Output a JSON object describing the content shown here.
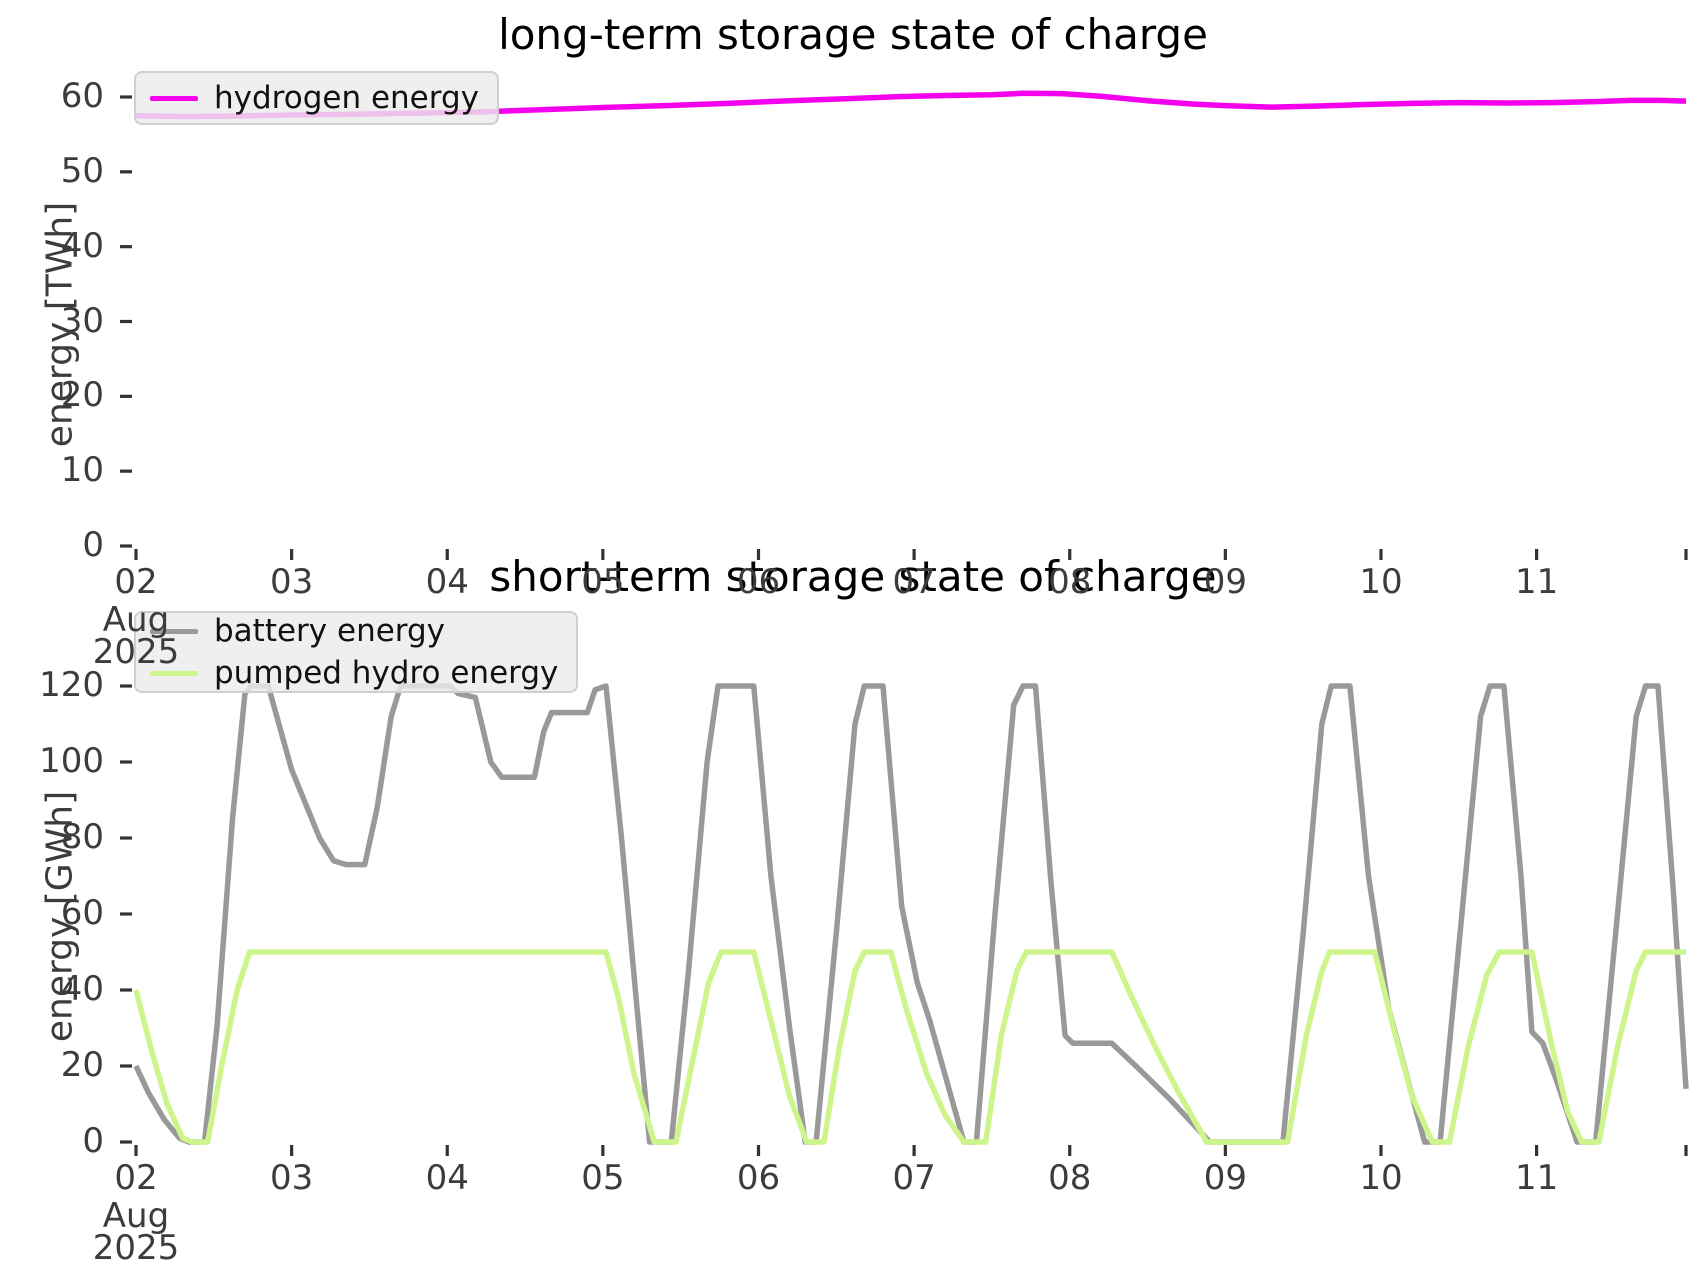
{
  "chart_data": [
    {
      "type": "line",
      "title": "long-term storage state of charge",
      "ylabel": "energy [TWh]",
      "yticks": [
        0,
        10,
        20,
        30,
        40,
        50,
        60
      ],
      "ylim": [
        0,
        60
      ],
      "xlim_days": [
        2.0,
        11.96
      ],
      "x_unit": "day of August 2025",
      "xticks": [
        {
          "day": 2,
          "label": "02",
          "sub": [
            "Aug",
            "2025"
          ]
        },
        {
          "day": 3,
          "label": "03"
        },
        {
          "day": 4,
          "label": "04"
        },
        {
          "day": 5,
          "label": "05"
        },
        {
          "day": 6,
          "label": "06"
        },
        {
          "day": 7,
          "label": "07"
        },
        {
          "day": 8,
          "label": "08"
        },
        {
          "day": 9,
          "label": "09"
        },
        {
          "day": 10,
          "label": "10"
        },
        {
          "day": 11,
          "label": "11"
        }
      ],
      "grid": false,
      "legend_position": "upper-left",
      "series": [
        {
          "name": "hydrogen energy",
          "color": "#f500ee",
          "points": [
            [
              2.0,
              57.5
            ],
            [
              2.3,
              57.4
            ],
            [
              2.6,
              57.45
            ],
            [
              3.0,
              57.6
            ],
            [
              3.4,
              57.7
            ],
            [
              3.8,
              57.85
            ],
            [
              4.2,
              58.0
            ],
            [
              4.6,
              58.3
            ],
            [
              5.0,
              58.6
            ],
            [
              5.4,
              58.85
            ],
            [
              5.8,
              59.15
            ],
            [
              6.2,
              59.5
            ],
            [
              6.6,
              59.8
            ],
            [
              6.9,
              60.05
            ],
            [
              7.2,
              60.2
            ],
            [
              7.5,
              60.3
            ],
            [
              7.7,
              60.5
            ],
            [
              7.95,
              60.45
            ],
            [
              8.2,
              60.1
            ],
            [
              8.5,
              59.5
            ],
            [
              8.8,
              59.05
            ],
            [
              9.0,
              58.85
            ],
            [
              9.3,
              58.65
            ],
            [
              9.6,
              58.8
            ],
            [
              9.9,
              59.0
            ],
            [
              10.2,
              59.15
            ],
            [
              10.5,
              59.25
            ],
            [
              10.8,
              59.2
            ],
            [
              11.1,
              59.25
            ],
            [
              11.4,
              59.4
            ],
            [
              11.6,
              59.55
            ],
            [
              11.8,
              59.55
            ],
            [
              11.96,
              59.45
            ]
          ]
        }
      ]
    },
    {
      "type": "line",
      "title": "short-term storage state of charge",
      "ylabel": "energy [GWh]",
      "yticks": [
        0,
        20,
        40,
        60,
        80,
        100,
        120
      ],
      "ylim": [
        0,
        120
      ],
      "xlim_days": [
        2.0,
        11.96
      ],
      "x_unit": "day of August 2025",
      "xticks": [
        {
          "day": 2,
          "label": "02",
          "sub": [
            "Aug",
            "2025"
          ]
        },
        {
          "day": 3,
          "label": "03"
        },
        {
          "day": 4,
          "label": "04"
        },
        {
          "day": 5,
          "label": "05"
        },
        {
          "day": 6,
          "label": "06"
        },
        {
          "day": 7,
          "label": "07"
        },
        {
          "day": 8,
          "label": "08"
        },
        {
          "day": 9,
          "label": "09"
        },
        {
          "day": 10,
          "label": "10"
        },
        {
          "day": 11,
          "label": "11"
        }
      ],
      "grid": false,
      "legend_position": "upper-left",
      "series": [
        {
          "name": "battery energy",
          "color": "#999999",
          "points": [
            [
              2.0,
              20
            ],
            [
              2.08,
              13
            ],
            [
              2.18,
              6
            ],
            [
              2.28,
              1
            ],
            [
              2.34,
              0
            ],
            [
              2.44,
              0
            ],
            [
              2.52,
              30
            ],
            [
              2.62,
              85
            ],
            [
              2.7,
              118
            ],
            [
              2.74,
              120
            ],
            [
              2.85,
              120
            ],
            [
              3.0,
              98
            ],
            [
              3.18,
              80
            ],
            [
              3.27,
              74
            ],
            [
              3.35,
              73
            ],
            [
              3.47,
              73
            ],
            [
              3.55,
              88
            ],
            [
              3.64,
              112
            ],
            [
              3.7,
              120
            ],
            [
              4.02,
              120
            ],
            [
              4.07,
              118
            ],
            [
              4.18,
              117
            ],
            [
              4.28,
              100
            ],
            [
              4.35,
              96
            ],
            [
              4.56,
              96
            ],
            [
              4.62,
              108
            ],
            [
              4.67,
              113
            ],
            [
              4.9,
              113
            ],
            [
              4.95,
              119
            ],
            [
              5.02,
              120
            ],
            [
              5.12,
              80
            ],
            [
              5.22,
              35
            ],
            [
              5.3,
              0
            ],
            [
              5.44,
              0
            ],
            [
              5.55,
              45
            ],
            [
              5.67,
              100
            ],
            [
              5.74,
              120
            ],
            [
              5.97,
              120
            ],
            [
              6.08,
              70
            ],
            [
              6.2,
              30
            ],
            [
              6.3,
              0
            ],
            [
              6.37,
              0
            ],
            [
              6.5,
              55
            ],
            [
              6.62,
              110
            ],
            [
              6.68,
              120
            ],
            [
              6.8,
              120
            ],
            [
              6.92,
              62
            ],
            [
              7.02,
              42
            ],
            [
              7.1,
              32
            ],
            [
              7.32,
              0
            ],
            [
              7.4,
              0
            ],
            [
              7.52,
              60
            ],
            [
              7.64,
              115
            ],
            [
              7.7,
              120
            ],
            [
              7.78,
              120
            ],
            [
              7.88,
              68
            ],
            [
              7.97,
              28
            ],
            [
              8.02,
              26
            ],
            [
              8.27,
              26
            ],
            [
              8.45,
              19
            ],
            [
              8.65,
              11
            ],
            [
              8.9,
              0
            ],
            [
              9.37,
              0
            ],
            [
              9.5,
              55
            ],
            [
              9.62,
              110
            ],
            [
              9.68,
              120
            ],
            [
              9.8,
              120
            ],
            [
              9.92,
              70
            ],
            [
              10.05,
              35
            ],
            [
              10.28,
              0
            ],
            [
              10.38,
              0
            ],
            [
              10.52,
              60
            ],
            [
              10.64,
              112
            ],
            [
              10.7,
              120
            ],
            [
              10.79,
              120
            ],
            [
              10.9,
              70
            ],
            [
              10.97,
              29
            ],
            [
              11.04,
              26
            ],
            [
              11.13,
              16
            ],
            [
              11.26,
              0
            ],
            [
              11.38,
              0
            ],
            [
              11.52,
              60
            ],
            [
              11.64,
              112
            ],
            [
              11.7,
              120
            ],
            [
              11.78,
              120
            ],
            [
              11.88,
              65
            ],
            [
              11.96,
              14
            ]
          ]
        },
        {
          "name": "pumped hydro energy",
          "color": "#cdf58c",
          "points": [
            [
              2.0,
              40
            ],
            [
              2.1,
              24
            ],
            [
              2.2,
              10
            ],
            [
              2.3,
              1
            ],
            [
              2.36,
              0
            ],
            [
              2.46,
              0
            ],
            [
              2.55,
              20
            ],
            [
              2.65,
              40
            ],
            [
              2.73,
              50
            ],
            [
              5.02,
              50
            ],
            [
              5.1,
              38
            ],
            [
              5.2,
              18
            ],
            [
              5.33,
              0
            ],
            [
              5.47,
              0
            ],
            [
              5.58,
              22
            ],
            [
              5.68,
              42
            ],
            [
              5.76,
              50
            ],
            [
              5.97,
              50
            ],
            [
              6.08,
              32
            ],
            [
              6.2,
              12
            ],
            [
              6.31,
              0
            ],
            [
              6.42,
              0
            ],
            [
              6.52,
              25
            ],
            [
              6.62,
              45
            ],
            [
              6.68,
              50
            ],
            [
              6.85,
              50
            ],
            [
              6.95,
              35
            ],
            [
              7.08,
              18
            ],
            [
              7.2,
              7
            ],
            [
              7.32,
              0
            ],
            [
              7.46,
              0
            ],
            [
              7.56,
              28
            ],
            [
              7.66,
              45
            ],
            [
              7.72,
              50
            ],
            [
              8.27,
              50
            ],
            [
              8.4,
              38
            ],
            [
              8.55,
              25
            ],
            [
              8.7,
              13
            ],
            [
              8.88,
              0
            ],
            [
              9.4,
              0
            ],
            [
              9.52,
              28
            ],
            [
              9.62,
              45
            ],
            [
              9.67,
              50
            ],
            [
              9.96,
              50
            ],
            [
              10.08,
              30
            ],
            [
              10.2,
              12
            ],
            [
              10.33,
              0
            ],
            [
              10.44,
              0
            ],
            [
              10.56,
              25
            ],
            [
              10.68,
              44
            ],
            [
              10.76,
              50
            ],
            [
              10.97,
              50
            ],
            [
              11.1,
              25
            ],
            [
              11.2,
              8
            ],
            [
              11.29,
              0
            ],
            [
              11.4,
              0
            ],
            [
              11.52,
              25
            ],
            [
              11.64,
              45
            ],
            [
              11.7,
              50
            ],
            [
              11.96,
              50
            ]
          ]
        }
      ]
    }
  ]
}
